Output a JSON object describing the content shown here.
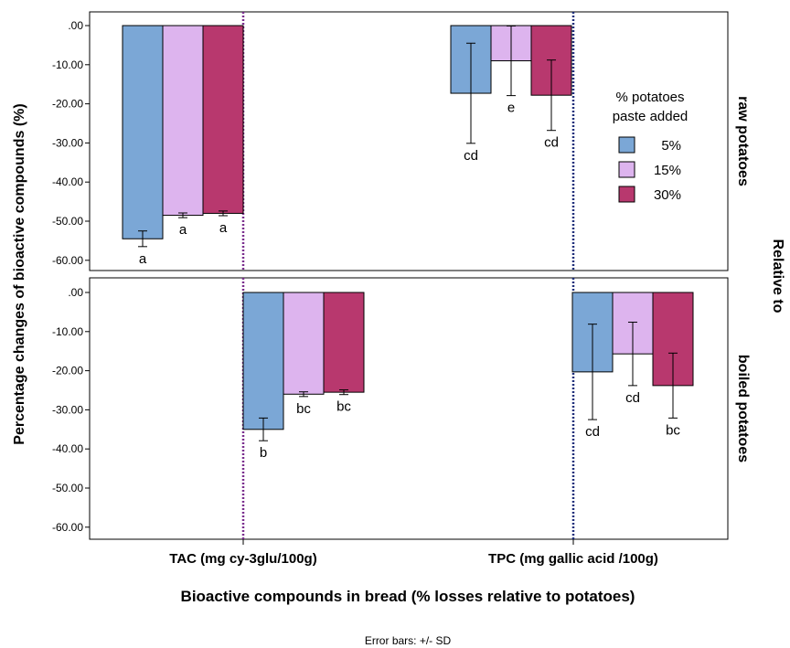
{
  "chart_data": {
    "type": "bar",
    "ylabel": "Percentage changes of bioactive compounds (%)",
    "xlabel": "Bioactive compounds in bread (% losses relative to potatoes)",
    "categories": [
      "TAC (mg cy-3glu/100g)",
      "TPC (mg gallic acid /100g)"
    ],
    "ylim": [
      -62,
      2
    ],
    "yticks": [
      ".00",
      "-10.00",
      "-20.00",
      "-30.00",
      "-40.00",
      "-50.00",
      "-60.00"
    ],
    "panel_group_label": "Relative to",
    "legend": {
      "title_lines": [
        "% potatoes",
        "paste added"
      ],
      "entries": [
        {
          "label": "5%",
          "color": "#7BA7D6"
        },
        {
          "label": "15%",
          "color": "#DDB4EE"
        },
        {
          "label": "30%",
          "color": "#B8386E"
        }
      ],
      "placement": "top-right"
    },
    "footer": "Error bars: +/- SD",
    "panels": [
      {
        "label": "raw potatoes",
        "groups": [
          {
            "category": "TAC (mg cy-3glu/100g)",
            "bars": [
              {
                "series": "5%",
                "value": -54.5,
                "sd": 2.0,
                "letter": "a"
              },
              {
                "series": "15%",
                "value": -48.5,
                "sd": 0.6,
                "letter": "a"
              },
              {
                "series": "30%",
                "value": -48.0,
                "sd": 0.6,
                "letter": "a"
              }
            ]
          },
          {
            "category": "TPC (mg gallic acid /100g)",
            "bars": [
              {
                "series": "5%",
                "value": -17.3,
                "sd": 12.8,
                "letter": "cd"
              },
              {
                "series": "15%",
                "value": -9.0,
                "sd": 8.9,
                "letter": "e"
              },
              {
                "series": "30%",
                "value": -17.8,
                "sd": 9.0,
                "letter": "cd"
              }
            ]
          }
        ]
      },
      {
        "label": "boiled potatoes",
        "groups": [
          {
            "category": "TAC (mg cy-3glu/100g)",
            "bars": [
              {
                "series": "5%",
                "value": -35.0,
                "sd": 2.9,
                "letter": "b"
              },
              {
                "series": "15%",
                "value": -26.0,
                "sd": 0.6,
                "letter": "bc"
              },
              {
                "series": "30%",
                "value": -25.5,
                "sd": 0.6,
                "letter": "bc"
              }
            ]
          },
          {
            "category": "TPC (mg gallic acid /100g)",
            "bars": [
              {
                "series": "5%",
                "value": -20.3,
                "sd": 12.2,
                "letter": "cd"
              },
              {
                "series": "15%",
                "value": -15.7,
                "sd": 8.1,
                "letter": "cd"
              },
              {
                "series": "30%",
                "value": -23.8,
                "sd": 8.3,
                "letter": "bc"
              }
            ]
          }
        ]
      }
    ]
  }
}
